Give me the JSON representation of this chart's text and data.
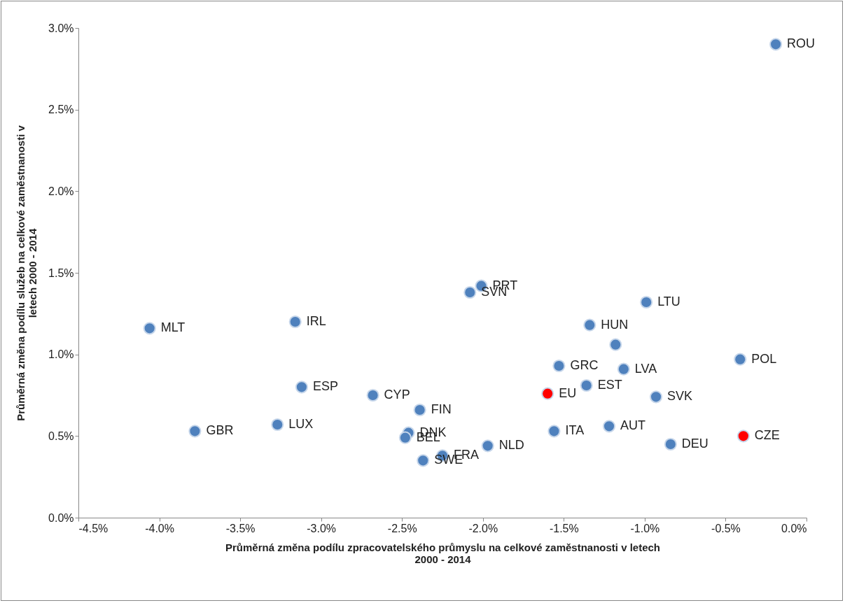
{
  "chart_data": {
    "type": "scatter",
    "xlabel": "Průměrná změna podílu zpracovatelského průmyslu na celkové zaměstnanosti v letech 2000 - 2014",
    "ylabel": "Průměrná změna podílu služeb na celkové zaměstnanosti v letech 2000 - 2014",
    "x": [
      -0.19,
      -4.06,
      -3.16,
      -3.12,
      -3.78,
      -3.27,
      -2.68,
      -2.46,
      -2.48,
      -2.39,
      -2.37,
      -2.25,
      -1.97,
      -2.08,
      -2.01,
      -1.6,
      -1.56,
      -1.53,
      -1.36,
      -1.34,
      -1.18,
      -1.13,
      -1.22,
      -0.99,
      -0.93,
      -0.84,
      -0.41,
      -0.39
    ],
    "values": [
      2.9,
      1.16,
      1.2,
      0.8,
      0.53,
      0.57,
      0.75,
      0.52,
      0.49,
      0.66,
      0.35,
      0.38,
      0.44,
      1.38,
      1.42,
      0.76,
      0.53,
      0.93,
      0.81,
      1.18,
      1.06,
      0.91,
      0.56,
      1.32,
      0.74,
      0.45,
      0.97,
      0.5
    ],
    "colors": [
      "#4f81bd",
      "#4f81bd",
      "#4f81bd",
      "#4f81bd",
      "#4f81bd",
      "#4f81bd",
      "#4f81bd",
      "#4f81bd",
      "#4f81bd",
      "#4f81bd",
      "#4f81bd",
      "#4f81bd",
      "#4f81bd",
      "#4f81bd",
      "#4f81bd",
      "#ff0000",
      "#4f81bd",
      "#4f81bd",
      "#4f81bd",
      "#4f81bd",
      "#4f81bd",
      "#4f81bd",
      "#4f81bd",
      "#4f81bd",
      "#4f81bd",
      "#4f81bd",
      "#4f81bd",
      "#ff0000"
    ],
    "marker": "circle",
    "xlim": [
      -4.5,
      0
    ],
    "xticks": [
      {
        "value": -4.5,
        "label": "-4.5%"
      },
      {
        "value": -4,
        "label": "-4.0%"
      },
      {
        "value": -3.5,
        "label": "-3.5%"
      },
      {
        "value": -3,
        "label": "-3.0%"
      },
      {
        "value": -2.5,
        "label": "-2.5%"
      },
      {
        "value": -2,
        "label": "-2.0%"
      },
      {
        "value": -1.5,
        "label": "-1.5%"
      },
      {
        "value": -1,
        "label": "-1.0%"
      },
      {
        "value": -0.5,
        "label": "-0.5%"
      },
      {
        "value": 0,
        "label": "0.0%"
      }
    ],
    "ylim": [
      0,
      3
    ],
    "yticks": [
      {
        "value": 0,
        "label": "0.0%"
      },
      {
        "value": 0.5,
        "label": "0.5%"
      },
      {
        "value": 1,
        "label": "1.0%"
      },
      {
        "value": 1.5,
        "label": "1.5%"
      },
      {
        "value": 2,
        "label": "2.0%"
      },
      {
        "value": 2.5,
        "label": "2.5%"
      },
      {
        "value": 3,
        "label": "3.0%"
      }
    ],
    "grid": false,
    "annotations": [
      {
        "text": "ROU",
        "x": -0.19,
        "y": 2.9
      },
      {
        "text": "MLT",
        "x": -4.06,
        "y": 1.16
      },
      {
        "text": "IRL",
        "x": -3.16,
        "y": 1.2
      },
      {
        "text": "ESP",
        "x": -3.12,
        "y": 0.8
      },
      {
        "text": "GBR",
        "x": -3.78,
        "y": 0.53
      },
      {
        "text": "LUX",
        "x": -3.27,
        "y": 0.57
      },
      {
        "text": "CYP",
        "x": -2.68,
        "y": 0.75
      },
      {
        "text": "DNK",
        "x": -2.46,
        "y": 0.52
      },
      {
        "text": "BEL",
        "x": -2.48,
        "y": 0.49
      },
      {
        "text": "FIN",
        "x": -2.39,
        "y": 0.66
      },
      {
        "text": "SWE",
        "x": -2.37,
        "y": 0.35
      },
      {
        "text": "FRA",
        "x": -2.25,
        "y": 0.38
      },
      {
        "text": "NLD",
        "x": -1.97,
        "y": 0.44
      },
      {
        "text": "SVN",
        "x": -2.08,
        "y": 1.38
      },
      {
        "text": "PRT",
        "x": -2.01,
        "y": 1.42
      },
      {
        "text": "EU",
        "x": -1.6,
        "y": 0.76
      },
      {
        "text": "ITA",
        "x": -1.56,
        "y": 0.53
      },
      {
        "text": "GRC",
        "x": -1.53,
        "y": 0.93
      },
      {
        "text": "EST",
        "x": -1.36,
        "y": 0.81
      },
      {
        "text": "HUN",
        "x": -1.34,
        "y": 1.18
      },
      {
        "text": "LVA",
        "x": -1.13,
        "y": 0.91
      },
      {
        "text": "AUT",
        "x": -1.22,
        "y": 0.56
      },
      {
        "text": "LTU",
        "x": -0.99,
        "y": 1.32
      },
      {
        "text": "SVK",
        "x": -0.93,
        "y": 0.74
      },
      {
        "text": "DEU",
        "x": -0.84,
        "y": 0.45
      },
      {
        "text": "POL",
        "x": -0.41,
        "y": 0.97
      },
      {
        "text": "CZE",
        "x": -0.39,
        "y": 0.5
      }
    ]
  }
}
